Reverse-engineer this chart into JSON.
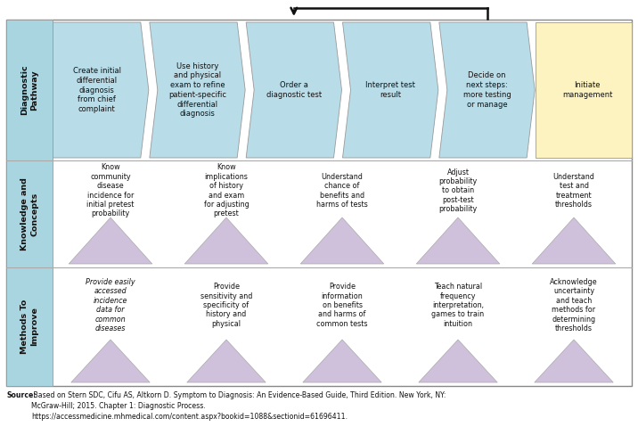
{
  "bg_color": "#ffffff",
  "light_blue": "#b8dce8",
  "light_yellow": "#fdf3c0",
  "light_purple": "#cfc0dc",
  "row_header_color": "#a8d5e0",
  "fig_width": 7.16,
  "fig_height": 4.88,
  "title_row_label": "Diagnostic\nPathway",
  "steps": [
    "Create initial\ndifferential\ndiagnosis\nfrom chief\ncomplaint",
    "Use history\nand physical\nexam to refine\npatient-specific\ndifferential\ndiagnosis",
    "Order a\ndiagnostic test",
    "Interpret test\nresult",
    "Decide on\nnext steps:\nmore testing\nor manage",
    "Initiate\nmanagement"
  ],
  "knowledge_label": "Knowledge and\nConcepts",
  "knowledge_items": [
    "Know\ncommunity\ndisease\nincidence for\ninitial pretest\nprobability",
    "Know\nimplications\nof history\nand exam\nfor adjusting\npretest",
    "Understand\nchance of\nbenefits and\nharms of tests",
    "Adjust\nprobability\nto obtain\npost-test\nprobability",
    "Understand\ntest and\ntreatment\nthresholds"
  ],
  "methods_label": "Methods To\nImprove",
  "methods_items": [
    "Provide easily\naccessed\nincidence\ndata for\ncommon\ndiseases",
    "Provide\nsensitivity and\nspecificity of\nhistory and\nphysical",
    "Provide\ninformation\non benefits\nand harms of\ncommon tests",
    "Teach natural\nfrequency\ninterpretation,\ngames to train\nintuition",
    "Acknowledge\nuncertainty\nand teach\nmethods for\ndetermining\nthresholds"
  ],
  "source_bold": "Source:",
  "source_rest": " Based on Stern SDC, Cifu AS, Altkorn D. Symptom to Diagnosis: An Evidence-Based Guide, Third Edition. New York, NY:\nMcGraw-Hill; 2015. Chapter 1: Diagnostic Process.\nhttps://accessmedicine.mhmedical.com/content.aspx?bookid=1088&sectionid=61696411."
}
